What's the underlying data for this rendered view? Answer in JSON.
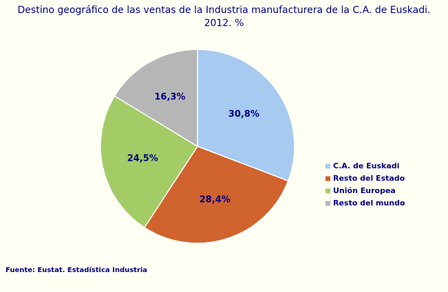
{
  "chart_data": {
    "type": "pie",
    "title": "Destino geográfico de las ventas de la Industria manufacturera de la C.A. de Euskadi. 2012. %",
    "categories": [
      "C.A. de Euskadi",
      "Resto del Estado",
      "Unión Europea",
      "Resto del mundo"
    ],
    "values": [
      30.8,
      28.4,
      24.5,
      16.3
    ],
    "value_labels": [
      "30,8%",
      "28,4%",
      "24,5%",
      "16,3%"
    ],
    "colors": [
      "#a6caf0",
      "#d0632e",
      "#a4cc66",
      "#b6b6b6"
    ],
    "legend": "right",
    "source": "Fuente: Eustat. Estadística Industria"
  }
}
